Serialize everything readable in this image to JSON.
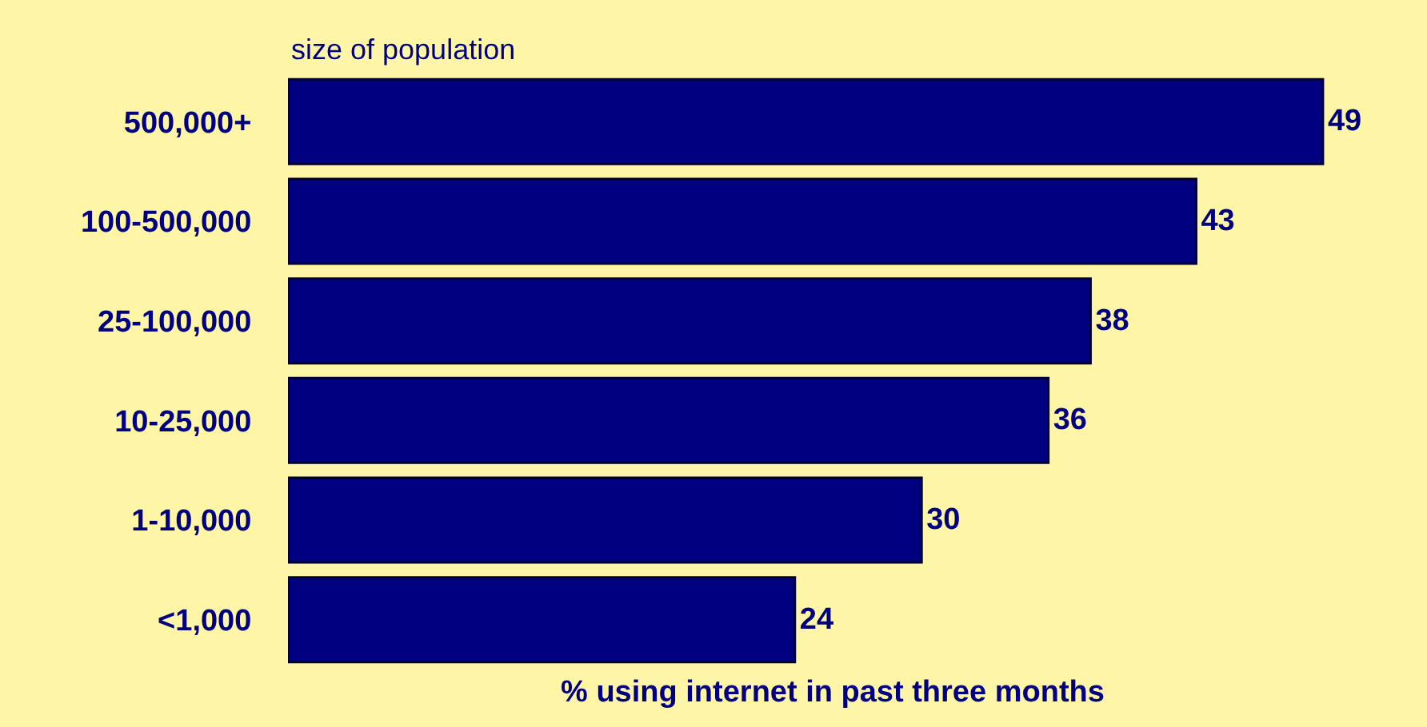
{
  "chart_data": {
    "type": "bar",
    "orientation": "horizontal",
    "ylabel": "size of population",
    "xlabel": "% using internet in past three months",
    "categories": [
      "500,000+",
      "100-500,000",
      "25-100,000",
      "10-25,000",
      "1-10,000",
      "<1,000"
    ],
    "values": [
      49,
      43,
      38,
      36,
      30,
      24
    ],
    "color": "#000080",
    "data_labels": true,
    "grid": false,
    "legend": false
  }
}
